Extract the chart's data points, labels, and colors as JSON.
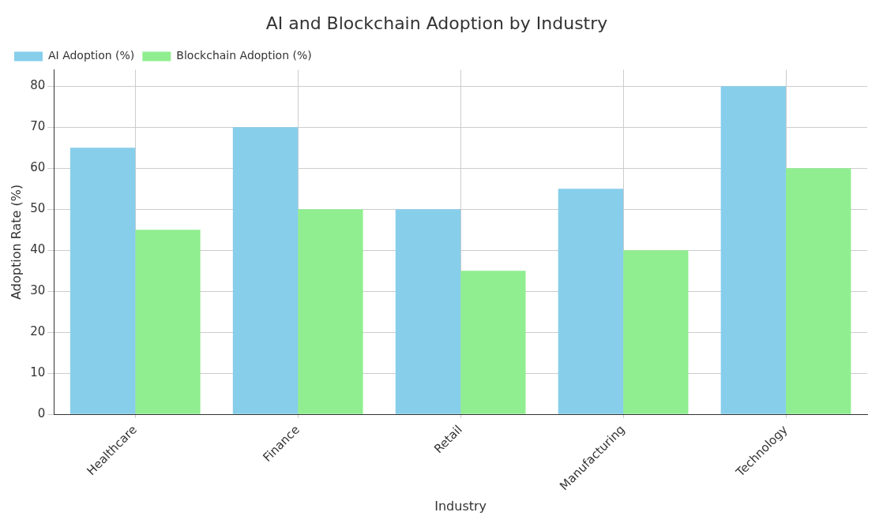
{
  "chart_data": {
    "type": "bar",
    "title": "AI and Blockchain Adoption by Industry",
    "xlabel": "Industry",
    "ylabel": "Adoption Rate (%)",
    "categories": [
      "Healthcare",
      "Finance",
      "Retail",
      "Manufacturing",
      "Technology"
    ],
    "series": [
      {
        "name": "AI Adoption (%)",
        "color": "#87ceeb",
        "values": [
          65,
          70,
          50,
          55,
          80
        ]
      },
      {
        "name": "Blockchain Adoption (%)",
        "color": "#90ee90",
        "values": [
          45,
          50,
          35,
          40,
          60
        ]
      }
    ],
    "ylim": [
      0,
      84
    ],
    "yticks": [
      0,
      10,
      20,
      30,
      40,
      50,
      60,
      70,
      80
    ],
    "grid": true,
    "legend": "top left"
  }
}
